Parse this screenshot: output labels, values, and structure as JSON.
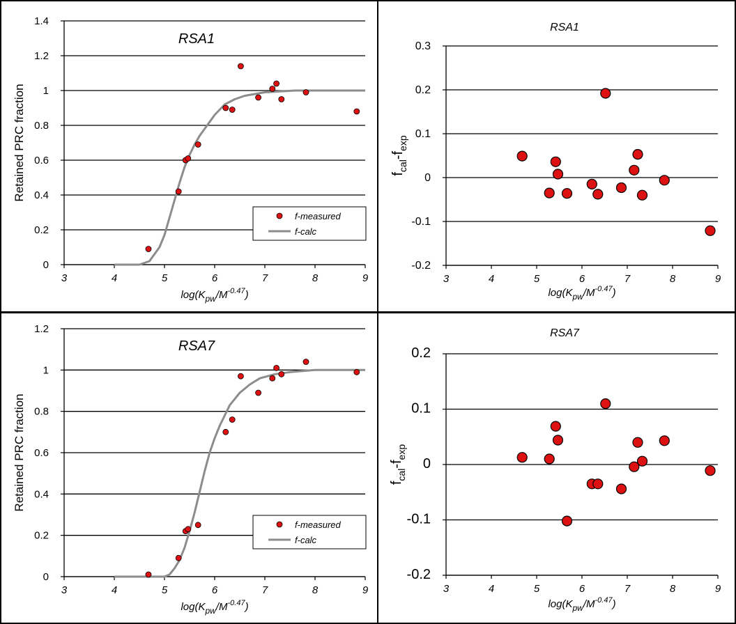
{
  "chart_data": [
    {
      "type": "scatter",
      "title": "RSA1",
      "ylabel": "Retained  PRC fraction",
      "xlabel": "log(K",
      "xlabel_sub": "pw",
      "xlabel_mid": "/M",
      "xlabel_sup": "-0.47",
      "xlabel_end": ")",
      "xlim": [
        3,
        9
      ],
      "ylim": [
        0,
        1.4
      ],
      "x_ticks": [
        "3",
        "4",
        "5",
        "6",
        "7",
        "8",
        "9"
      ],
      "y_ticks": [
        "0",
        "0.2",
        "0.4",
        "0.6",
        "0.8",
        "1",
        "1.2",
        "1.4"
      ],
      "grid": true,
      "legend_position": "bottom-right",
      "series": [
        {
          "name": "f-measured",
          "kind": "points",
          "color": "#dd1111",
          "x": [
            4.68,
            5.28,
            5.42,
            5.47,
            5.67,
            6.22,
            6.35,
            6.52,
            6.87,
            7.15,
            7.23,
            7.33,
            7.82,
            8.83
          ],
          "y": [
            0.09,
            0.42,
            0.6,
            0.61,
            0.69,
            0.9,
            0.89,
            1.14,
            0.96,
            1.01,
            1.04,
            0.95,
            0.99,
            0.88
          ]
        },
        {
          "name": "f-calc",
          "kind": "line",
          "color": "#8c8c8c",
          "x": [
            4.0,
            4.5,
            4.7,
            4.9,
            5.0,
            5.1,
            5.2,
            5.3,
            5.4,
            5.5,
            5.6,
            5.7,
            5.8,
            6.0,
            6.2,
            6.4,
            6.6,
            6.8,
            7.0,
            7.3,
            7.6,
            8.0,
            9.0
          ],
          "y": [
            0.0,
            0.0,
            0.02,
            0.1,
            0.17,
            0.27,
            0.37,
            0.47,
            0.56,
            0.63,
            0.69,
            0.74,
            0.78,
            0.86,
            0.92,
            0.95,
            0.97,
            0.98,
            0.99,
            0.995,
            1.0,
            1.0,
            1.0
          ]
        }
      ]
    },
    {
      "type": "scatter",
      "title": "RSA1",
      "ylabel_main": "f",
      "ylabel_sub1": "cal",
      "ylabel_mid": "-f",
      "ylabel_sub2": "exp",
      "xlabel": "log(K",
      "xlabel_sub": "pw",
      "xlabel_mid": "/M",
      "xlabel_sup": "-0.47",
      "xlabel_end": ")",
      "xlim": [
        3,
        9
      ],
      "ylim": [
        -0.2,
        0.3
      ],
      "x_ticks": [
        "3",
        "4",
        "5",
        "6",
        "7",
        "8",
        "9"
      ],
      "y_ticks": [
        "-0.2",
        "-0.1",
        "0",
        "0.1",
        "0.2",
        "0.3"
      ],
      "grid": true,
      "series": [
        {
          "name": "",
          "kind": "points",
          "color": "#dd1111",
          "x": [
            4.68,
            5.28,
            5.42,
            5.47,
            5.67,
            6.22,
            6.35,
            6.52,
            6.87,
            7.15,
            7.23,
            7.33,
            7.82,
            8.83
          ],
          "y": [
            0.049,
            -0.035,
            0.036,
            0.008,
            -0.036,
            -0.015,
            -0.038,
            0.192,
            -0.023,
            0.017,
            0.053,
            -0.04,
            -0.006,
            -0.121
          ]
        }
      ]
    },
    {
      "type": "scatter",
      "title": "RSA7",
      "ylabel": "Retained  PRC fraction",
      "xlabel": "log(K",
      "xlabel_sub": "pw",
      "xlabel_mid": "/M",
      "xlabel_sup": "-0.47",
      "xlabel_end": ")",
      "xlim": [
        3,
        9
      ],
      "ylim": [
        0,
        1.2
      ],
      "x_ticks": [
        "3",
        "4",
        "5",
        "6",
        "7",
        "8",
        "9"
      ],
      "y_ticks": [
        "0",
        "0.2",
        "0.4",
        "0.6",
        "0.8",
        "1",
        "1.2"
      ],
      "grid": true,
      "legend_position": "bottom-right",
      "series": [
        {
          "name": "f-measured",
          "kind": "points",
          "color": "#dd1111",
          "x": [
            4.68,
            5.28,
            5.42,
            5.47,
            5.67,
            6.22,
            6.35,
            6.52,
            6.87,
            7.15,
            7.23,
            7.33,
            7.82,
            8.83
          ],
          "y": [
            0.01,
            0.09,
            0.22,
            0.23,
            0.25,
            0.7,
            0.76,
            0.97,
            0.89,
            0.96,
            1.01,
            0.98,
            1.04,
            0.99
          ]
        },
        {
          "name": "f-calc",
          "kind": "line",
          "color": "#8c8c8c",
          "x": [
            4.0,
            4.5,
            5.0,
            5.1,
            5.2,
            5.3,
            5.4,
            5.5,
            5.6,
            5.7,
            5.8,
            5.9,
            6.0,
            6.1,
            6.2,
            6.3,
            6.4,
            6.5,
            6.7,
            6.9,
            7.2,
            7.5,
            8.0,
            9.0
          ],
          "y": [
            0.0,
            0.0,
            0.0,
            0.01,
            0.04,
            0.08,
            0.14,
            0.22,
            0.31,
            0.41,
            0.51,
            0.6,
            0.67,
            0.73,
            0.78,
            0.83,
            0.86,
            0.89,
            0.93,
            0.96,
            0.98,
            0.99,
            1.0,
            1.0
          ]
        }
      ]
    },
    {
      "type": "scatter",
      "title": "RSA7",
      "ylabel_main": "f",
      "ylabel_sub1": "cal",
      "ylabel_mid": "-f",
      "ylabel_sub2": "exp",
      "xlabel": "log(K",
      "xlabel_sub": "pw",
      "xlabel_mid": "/M",
      "xlabel_sup": "-0.47",
      "xlabel_end": ")",
      "xlim": [
        3,
        9
      ],
      "ylim": [
        -0.2,
        0.2
      ],
      "x_ticks": [
        "3",
        "4",
        "5",
        "6",
        "7",
        "8",
        "9"
      ],
      "y_ticks": [
        "-0.2",
        "-0.1",
        "0",
        "0.1",
        "0.2"
      ],
      "grid": true,
      "series": [
        {
          "name": "",
          "kind": "points",
          "color": "#dd1111",
          "x": [
            4.68,
            5.28,
            5.42,
            5.47,
            5.67,
            6.22,
            6.35,
            6.52,
            6.87,
            7.15,
            7.23,
            7.33,
            7.82,
            8.83
          ],
          "y": [
            0.013,
            0.01,
            0.069,
            0.044,
            -0.102,
            -0.035,
            -0.035,
            0.11,
            -0.044,
            -0.004,
            0.04,
            0.006,
            0.043,
            -0.011
          ]
        }
      ]
    }
  ]
}
